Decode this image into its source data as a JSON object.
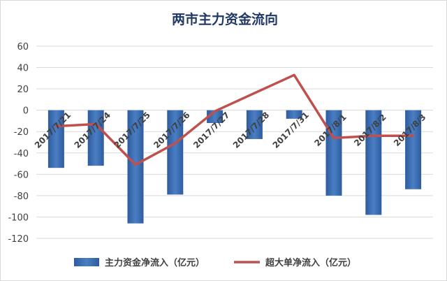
{
  "chart_data": {
    "type": "bar",
    "title": "两市主力资金流向",
    "categories": [
      "2017/7/21",
      "2017/7/24",
      "2017/7/25",
      "2017/7/26",
      "2017/7/27",
      "2017/7/28",
      "2017/7/31",
      "2017/8/1",
      "2017/8/2",
      "2017/8/3"
    ],
    "series": [
      {
        "name": "主力资金净流入（亿元）",
        "kind": "bar",
        "color": "#3b6db3",
        "values": [
          -54,
          -52,
          -106,
          -79,
          -12,
          -27,
          -8,
          -80,
          -98,
          -74
        ]
      },
      {
        "name": "超大单净流入（亿元）",
        "kind": "line",
        "color": "#c0504d",
        "values": [
          -15,
          -13,
          -51,
          -31,
          -1,
          16,
          33,
          -26,
          -24,
          -24
        ]
      }
    ],
    "ylim": [
      -120,
      60
    ],
    "yticks": [
      60,
      40,
      20,
      0,
      -20,
      -40,
      -60,
      -80,
      -100,
      -120
    ],
    "grid": true,
    "legend_position": "bottom",
    "xlabel": "",
    "ylabel": ""
  }
}
